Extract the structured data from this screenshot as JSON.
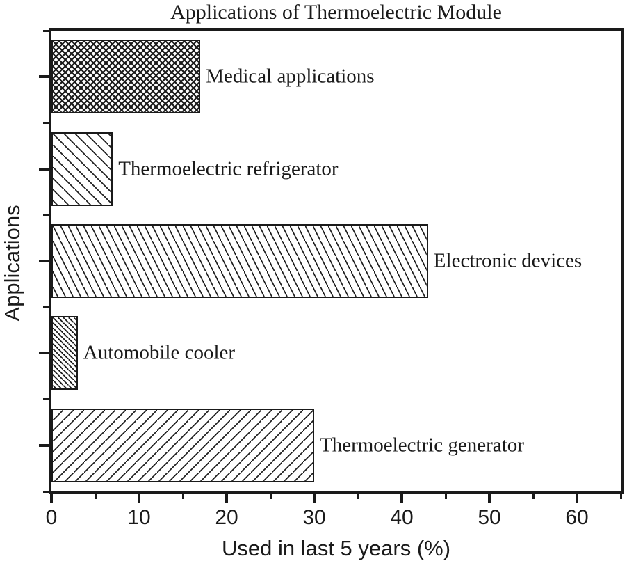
{
  "colors": {
    "ink": "#1a1a1a",
    "background": "#ffffff"
  },
  "chart_data": {
    "type": "bar",
    "orientation": "horizontal",
    "title": "Applications of Thermoelectric Module",
    "xlabel": "Used in last 5 years (%)",
    "ylabel": "Applications",
    "categories": [
      "Medical applications",
      "Thermoelectric refrigerator",
      "Electronic devices",
      "Automobile cooler",
      "Thermoelectric generator"
    ],
    "values": [
      17,
      7,
      43,
      3,
      30
    ],
    "hatches": [
      "crosshatch",
      "backslash-wide",
      "backslash-steep",
      "backslash-dense",
      "slash"
    ],
    "xlim": [
      0,
      65
    ],
    "x_major_ticks": [
      0,
      10,
      20,
      30,
      40,
      50,
      60
    ],
    "x_minor_ticks": [
      5,
      15,
      25,
      35,
      45,
      55,
      65
    ],
    "bar_fill": "#ffffff",
    "line_color": "#1a1a1a",
    "grid": false,
    "legend": false
  }
}
